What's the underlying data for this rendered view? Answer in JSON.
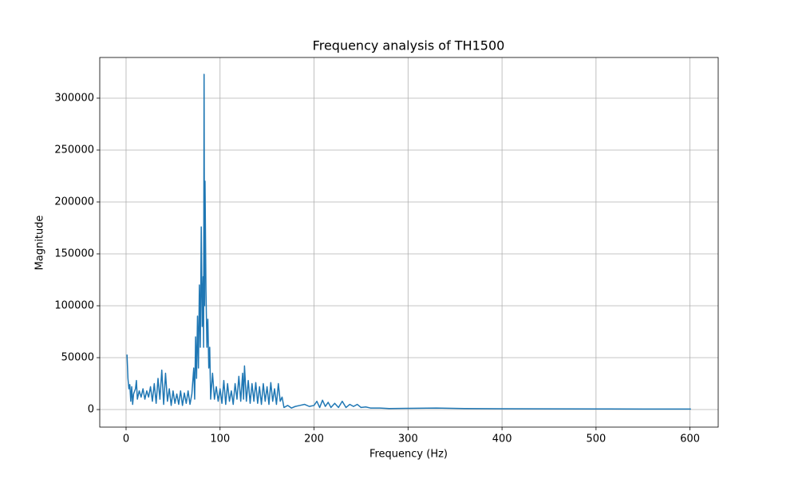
{
  "chart_data": {
    "type": "line",
    "title": "Frequency analysis of TH1500",
    "x_label": "Frequency (Hz)",
    "y_label": "Magnitude",
    "xlim": [
      -28,
      630
    ],
    "ylim": [
      -16900,
      339200
    ],
    "xticks": [
      0,
      100,
      200,
      300,
      400,
      500,
      600
    ],
    "yticks": [
      0,
      50000,
      100000,
      150000,
      200000,
      250000,
      300000
    ],
    "grid": true,
    "x": [
      1,
      2,
      3,
      4,
      5,
      6,
      7,
      8,
      10,
      11,
      12,
      14,
      16,
      18,
      20,
      22,
      24,
      26,
      28,
      30,
      32,
      34,
      36,
      38,
      40,
      42,
      44,
      46,
      48,
      50,
      52,
      54,
      56,
      58,
      60,
      62,
      64,
      66,
      68,
      70,
      72,
      73,
      74,
      75,
      76,
      77,
      78,
      79,
      80,
      81,
      82,
      82.5,
      83,
      83.5,
      84,
      85,
      86,
      87,
      88,
      89,
      90,
      92,
      94,
      96,
      98,
      100,
      102,
      104,
      106,
      108,
      110,
      112,
      114,
      116,
      118,
      120,
      122,
      124,
      125,
      126,
      128,
      130,
      132,
      134,
      136,
      138,
      140,
      142,
      144,
      146,
      148,
      150,
      152,
      154,
      156,
      158,
      160,
      162,
      164,
      166,
      168,
      172,
      176,
      180,
      185,
      190,
      195,
      200,
      203,
      206,
      209,
      212,
      215,
      218,
      222,
      226,
      230,
      234,
      238,
      242,
      246,
      250,
      255,
      260,
      270,
      280,
      300,
      330,
      360,
      400,
      450,
      500,
      550,
      601
    ],
    "series": [
      {
        "name": "Magnitude",
        "color": "#1f77b4",
        "values": [
          53000,
          30000,
          20000,
          24000,
          8000,
          22000,
          5000,
          15000,
          20000,
          28000,
          10000,
          18000,
          12000,
          20000,
          10000,
          18000,
          12000,
          22000,
          8000,
          25000,
          6000,
          30000,
          10000,
          38000,
          5000,
          35000,
          8000,
          20000,
          4000,
          18000,
          6000,
          15000,
          5000,
          18000,
          4000,
          16000,
          6000,
          18000,
          5000,
          15000,
          40000,
          10000,
          70000,
          30000,
          90000,
          40000,
          120000,
          60000,
          176000,
          80000,
          128000,
          60000,
          323000,
          100000,
          220000,
          115000,
          60000,
          87000,
          40000,
          60000,
          10000,
          35000,
          10000,
          22000,
          8000,
          20000,
          6000,
          28000,
          5000,
          25000,
          8000,
          18000,
          5000,
          25000,
          10000,
          32000,
          8000,
          35000,
          10000,
          42000,
          8000,
          28000,
          6000,
          25000,
          8000,
          26000,
          6000,
          22000,
          5000,
          25000,
          8000,
          22000,
          5000,
          26000,
          8000,
          20000,
          5000,
          25000,
          8000,
          12000,
          2000,
          4000,
          1500,
          3000,
          4000,
          5000,
          3000,
          4000,
          8000,
          2000,
          9000,
          3000,
          7000,
          2000,
          6000,
          2000,
          8000,
          2000,
          5000,
          3000,
          5000,
          2000,
          2500,
          1500,
          1500,
          1000,
          1200,
          1500,
          1000,
          800,
          700,
          600,
          500,
          500
        ]
      }
    ]
  }
}
